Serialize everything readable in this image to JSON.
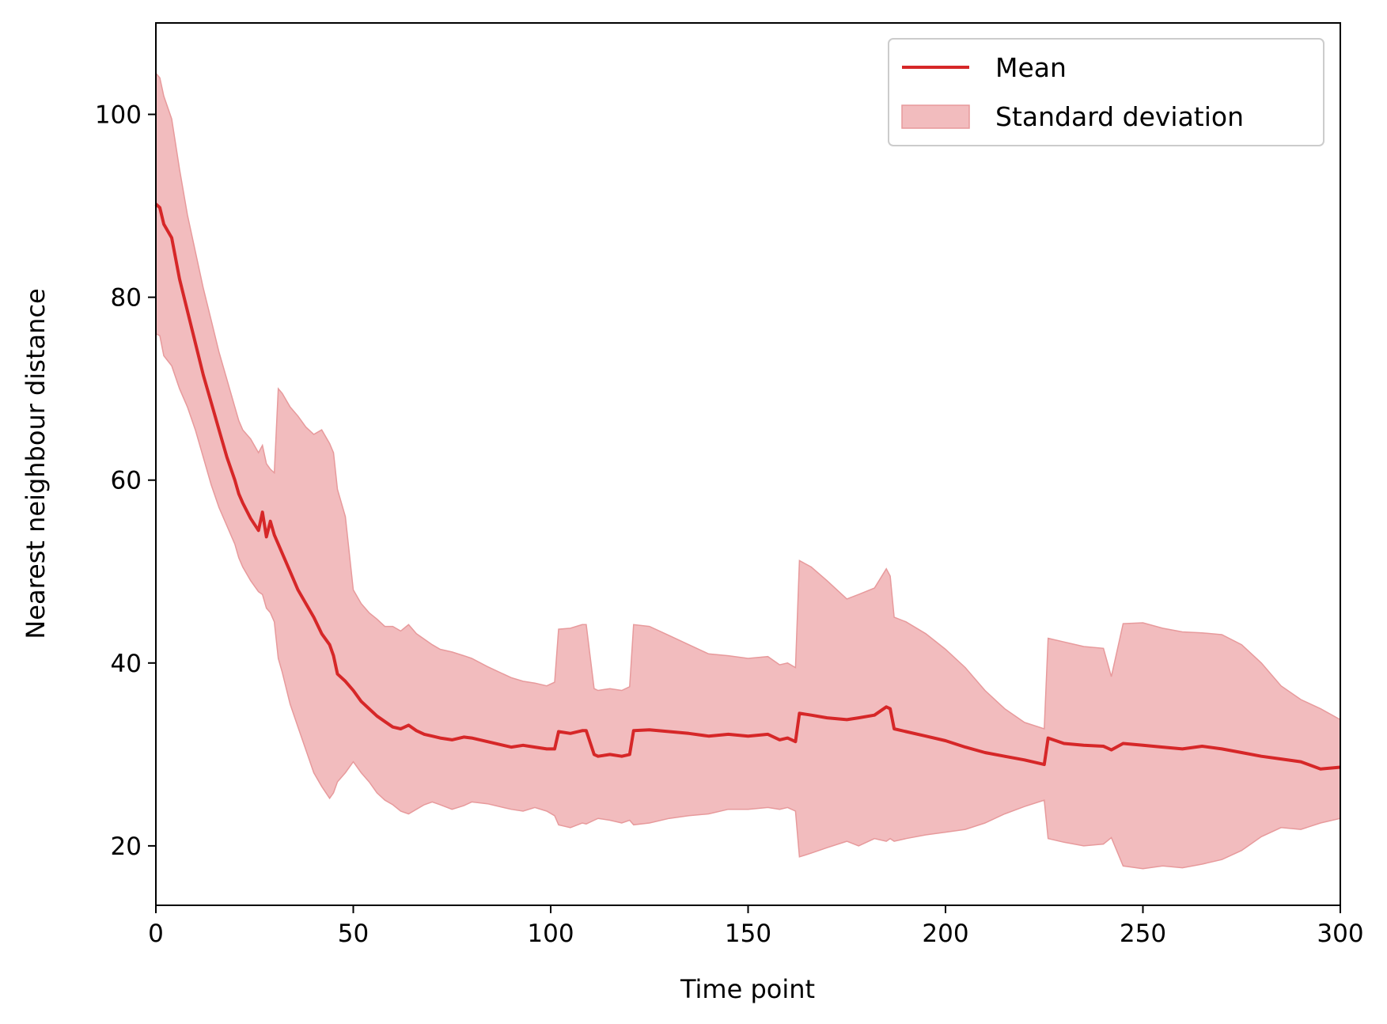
{
  "chart_data": {
    "type": "line",
    "title": "",
    "xlabel": "Time point",
    "ylabel": "Nearest neighbour distance",
    "xlim": [
      0,
      300
    ],
    "ylim": [
      13.5,
      110
    ],
    "xticks": [
      0,
      50,
      100,
      150,
      200,
      250,
      300
    ],
    "yticks": [
      20,
      40,
      60,
      80,
      100
    ],
    "grid": false,
    "legend_position": "top-right",
    "colors": {
      "mean": "#d62728",
      "band_fill": "#f2bcbe",
      "band_edge": "#e79a9c"
    },
    "series": [
      {
        "name": "Mean",
        "kind": "line",
        "x": [
          0,
          1,
          2,
          4,
          6,
          8,
          10,
          12,
          14,
          16,
          18,
          20,
          21,
          22,
          24,
          26,
          27,
          28,
          29,
          30,
          31,
          32,
          34,
          36,
          38,
          40,
          42,
          44,
          45,
          46,
          48,
          50,
          52,
          54,
          56,
          58,
          60,
          62,
          64,
          66,
          68,
          70,
          72,
          75,
          78,
          80,
          84,
          88,
          90,
          93,
          96,
          99,
          101,
          102,
          105,
          108,
          109,
          111,
          112,
          115,
          118,
          120,
          121,
          125,
          130,
          135,
          140,
          145,
          150,
          155,
          158,
          160,
          162,
          163,
          166,
          170,
          175,
          178,
          182,
          185,
          186,
          187,
          190,
          195,
          200,
          205,
          210,
          215,
          220,
          225,
          226,
          230,
          235,
          240,
          242,
          245,
          250,
          255,
          260,
          265,
          270,
          275,
          280,
          285,
          290,
          295,
          300
        ],
        "y": [
          90.2,
          89.8,
          88.0,
          86.5,
          82.0,
          78.5,
          75.0,
          71.5,
          68.5,
          65.5,
          62.5,
          60.0,
          58.5,
          57.5,
          55.8,
          54.5,
          56.5,
          53.8,
          55.5,
          54.0,
          53.0,
          52.0,
          50.0,
          48.0,
          46.5,
          45.0,
          43.2,
          42.0,
          40.8,
          38.8,
          38.0,
          37.0,
          35.8,
          35.0,
          34.2,
          33.6,
          33.0,
          32.8,
          33.2,
          32.6,
          32.2,
          32.0,
          31.8,
          31.6,
          31.9,
          31.8,
          31.4,
          31.0,
          30.8,
          31.0,
          30.8,
          30.6,
          30.6,
          32.5,
          32.3,
          32.6,
          32.6,
          30.0,
          29.8,
          30.0,
          29.8,
          30.0,
          32.6,
          32.7,
          32.5,
          32.3,
          32.0,
          32.2,
          32.0,
          32.2,
          31.6,
          31.8,
          31.4,
          34.5,
          34.3,
          34.0,
          33.8,
          34.0,
          34.3,
          35.2,
          35.0,
          32.8,
          32.5,
          32.0,
          31.5,
          30.8,
          30.2,
          29.8,
          29.4,
          28.9,
          31.8,
          31.2,
          31.0,
          30.9,
          30.5,
          31.2,
          31.0,
          30.8,
          30.6,
          30.9,
          30.6,
          30.2,
          29.8,
          29.5,
          29.2,
          28.4,
          28.6
        ]
      },
      {
        "name": "Standard deviation",
        "kind": "band",
        "x": [
          0,
          1,
          2,
          4,
          6,
          8,
          10,
          12,
          14,
          16,
          18,
          20,
          21,
          22,
          24,
          26,
          27,
          28,
          29,
          30,
          31,
          32,
          34,
          36,
          38,
          40,
          42,
          44,
          45,
          46,
          48,
          50,
          52,
          54,
          56,
          58,
          60,
          62,
          64,
          66,
          68,
          70,
          72,
          75,
          78,
          80,
          84,
          88,
          90,
          93,
          96,
          99,
          101,
          102,
          105,
          108,
          109,
          111,
          112,
          115,
          118,
          120,
          121,
          125,
          130,
          135,
          140,
          145,
          150,
          155,
          158,
          160,
          162,
          163,
          166,
          170,
          175,
          178,
          182,
          185,
          186,
          187,
          190,
          195,
          200,
          205,
          210,
          215,
          220,
          225,
          226,
          230,
          235,
          240,
          242,
          245,
          250,
          255,
          260,
          265,
          270,
          275,
          280,
          285,
          290,
          295,
          300
        ],
        "upper": [
          104.5,
          104.0,
          102.0,
          99.5,
          94.0,
          89.0,
          85.0,
          81.0,
          77.5,
          74.0,
          71.0,
          68.0,
          66.5,
          65.5,
          64.5,
          63.0,
          63.8,
          61.8,
          61.2,
          60.8,
          70.0,
          69.5,
          68.0,
          67.0,
          65.8,
          65.0,
          65.5,
          64.0,
          63.0,
          59.0,
          56.0,
          48.0,
          46.5,
          45.5,
          44.8,
          44.0,
          44.0,
          43.5,
          44.2,
          43.2,
          42.6,
          42.0,
          41.5,
          41.2,
          40.8,
          40.5,
          39.6,
          38.8,
          38.4,
          38.0,
          37.8,
          37.5,
          37.9,
          43.7,
          43.8,
          44.2,
          44.2,
          37.2,
          37.0,
          37.2,
          37.0,
          37.4,
          44.2,
          44.0,
          43.0,
          42.0,
          41.0,
          40.8,
          40.5,
          40.7,
          39.8,
          40.0,
          39.5,
          51.2,
          50.5,
          49.0,
          47.0,
          47.5,
          48.2,
          50.3,
          49.5,
          45.0,
          44.5,
          43.2,
          41.5,
          39.5,
          37.0,
          35.0,
          33.5,
          32.8,
          42.7,
          42.3,
          41.8,
          41.6,
          38.5,
          44.3,
          44.4,
          43.8,
          43.4,
          43.3,
          43.1,
          42.0,
          40.0,
          37.5,
          36.0,
          35.0,
          33.8
        ],
        "lower": [
          76.0,
          75.8,
          73.6,
          72.5,
          70.0,
          68.0,
          65.5,
          62.5,
          59.5,
          57.0,
          55.0,
          53.0,
          51.5,
          50.5,
          49.0,
          47.8,
          47.5,
          46.0,
          45.5,
          44.5,
          40.5,
          39.0,
          35.5,
          33.0,
          30.5,
          28.0,
          26.5,
          25.2,
          25.8,
          27.0,
          28.0,
          29.2,
          28.0,
          27.0,
          25.8,
          25.0,
          24.5,
          23.8,
          23.5,
          24.0,
          24.5,
          24.8,
          24.5,
          24.0,
          24.4,
          24.8,
          24.6,
          24.2,
          24.0,
          23.8,
          24.2,
          23.8,
          23.3,
          22.3,
          22.0,
          22.5,
          22.4,
          22.8,
          23.0,
          22.8,
          22.5,
          22.8,
          22.3,
          22.5,
          23.0,
          23.3,
          23.5,
          24.0,
          24.0,
          24.2,
          24.0,
          24.2,
          23.8,
          18.8,
          19.2,
          19.8,
          20.5,
          20.0,
          20.8,
          20.5,
          20.8,
          20.5,
          20.8,
          21.2,
          21.5,
          21.8,
          22.5,
          23.5,
          24.3,
          25.0,
          20.8,
          20.4,
          20.0,
          20.2,
          20.9,
          17.8,
          17.5,
          17.8,
          17.6,
          18.0,
          18.5,
          19.5,
          21.0,
          22.0,
          21.8,
          22.5,
          23.0
        ]
      }
    ],
    "legend": [
      {
        "label": "Mean",
        "kind": "line"
      },
      {
        "label": "Standard deviation",
        "kind": "band"
      }
    ]
  }
}
